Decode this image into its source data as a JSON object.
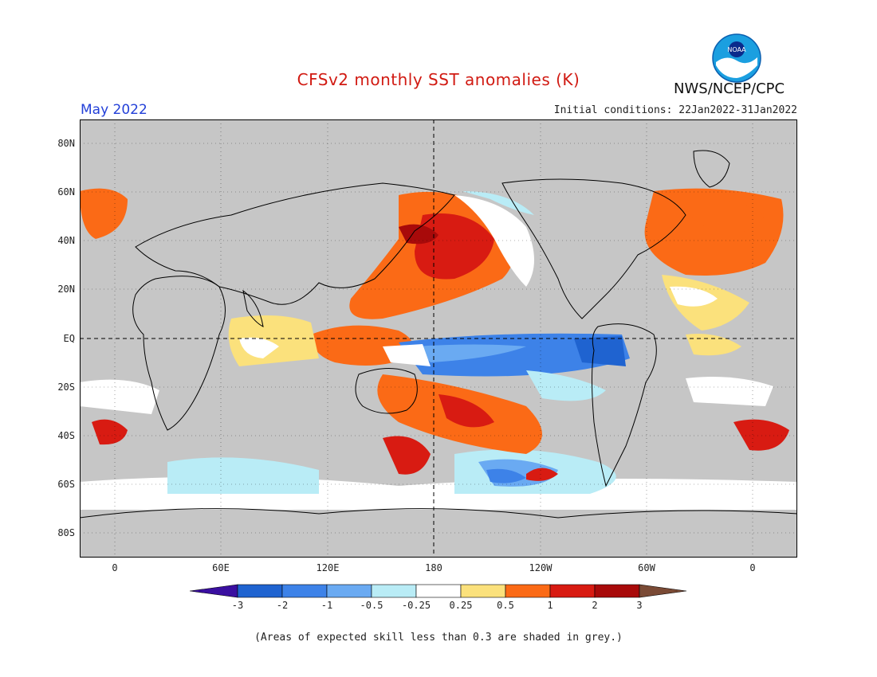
{
  "title": "CFSv2 monthly SST anomalies (K)",
  "organization": "NWS/NCEP/CPC",
  "logo_text": "NOAA",
  "target_month": "May 2022",
  "initial_conditions": "Initial conditions: 22Jan2022-31Jan2022",
  "lat_labels": [
    "80N",
    "60N",
    "40N",
    "20N",
    "EQ",
    "20S",
    "40S",
    "60S",
    "80S"
  ],
  "lon_labels": [
    "0",
    "60E",
    "120E",
    "180",
    "120W",
    "60W",
    "0"
  ],
  "colorbar": {
    "labels": [
      "-3",
      "-2",
      "-1",
      "-0.5",
      "-0.25",
      "0.25",
      "0.5",
      "1",
      "2",
      "3"
    ],
    "colors": [
      "#3a0fa0",
      "#1f63d0",
      "#3d82e8",
      "#6aaaf2",
      "#b9ecf6",
      "#ffffff",
      "#fbe17c",
      "#fb6a16",
      "#d81b12",
      "#a80a0a",
      "#7a4a35"
    ]
  },
  "colors": {
    "land_skill_mask": "#c6c6c6",
    "title_red": "#d11a12",
    "month_blue": "#2340d8"
  },
  "footnote": "(Areas of expected skill less than 0.3 are shaded in grey.)"
}
